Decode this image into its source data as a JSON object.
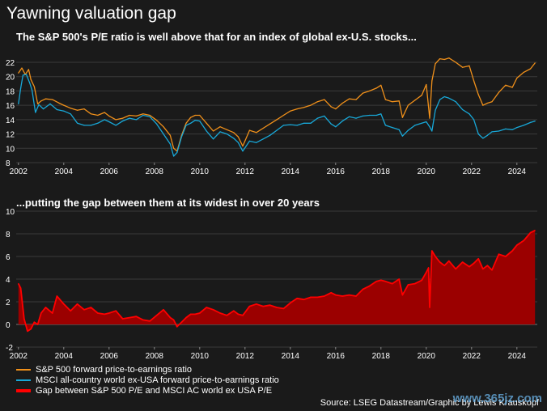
{
  "title": "Yawning valuation gap",
  "colors": {
    "background": "#1a1a1a",
    "sp500": "#f0901a",
    "msci": "#18a8d8",
    "gap_fill": "#9b0000",
    "gap_line": "#ff0000",
    "grid": "#3a3a3a"
  },
  "chart_data": [
    {
      "type": "line",
      "title": "The S&P 500's P/E ratio is well above that for an index of global ex-U.S. stocks...",
      "xlabel": "",
      "ylabel": "",
      "xlim": [
        2001.9,
        2024.9
      ],
      "ylim": [
        8,
        22
      ],
      "yticks": [
        "8",
        "10",
        "12",
        "14",
        "16",
        "18",
        "20",
        "22"
      ],
      "xticks": [
        "2002",
        "2004",
        "2006",
        "2008",
        "2010",
        "2012",
        "2014",
        "2016",
        "2018",
        "2020",
        "2022",
        "2024"
      ],
      "grid": true,
      "series": [
        {
          "name": "S&P 500 forward price-to-earnings ratio",
          "color": "#f0901a",
          "x": [
            2002.0,
            2002.15,
            2002.3,
            2002.45,
            2002.55,
            2002.7,
            2002.85,
            2003.0,
            2003.2,
            2003.5,
            2003.8,
            2004.0,
            2004.3,
            2004.6,
            2004.9,
            2005.2,
            2005.5,
            2005.8,
            2006.0,
            2006.3,
            2006.6,
            2006.9,
            2007.2,
            2007.5,
            2007.8,
            2008.1,
            2008.4,
            2008.7,
            2008.85,
            2009.0,
            2009.2,
            2009.4,
            2009.6,
            2009.8,
            2010.0,
            2010.3,
            2010.6,
            2010.9,
            2011.2,
            2011.5,
            2011.7,
            2011.9,
            2012.2,
            2012.5,
            2012.8,
            2013.1,
            2013.4,
            2013.7,
            2014.0,
            2014.3,
            2014.6,
            2014.9,
            2015.2,
            2015.5,
            2015.8,
            2016.0,
            2016.3,
            2016.6,
            2016.9,
            2017.2,
            2017.5,
            2017.8,
            2018.0,
            2018.2,
            2018.5,
            2018.8,
            2018.95,
            2019.2,
            2019.5,
            2019.8,
            2020.0,
            2020.15,
            2020.25,
            2020.4,
            2020.6,
            2020.8,
            2021.0,
            2021.3,
            2021.6,
            2021.9,
            2022.1,
            2022.3,
            2022.5,
            2022.7,
            2022.9,
            2023.2,
            2023.5,
            2023.8,
            2024.0,
            2024.3,
            2024.6,
            2024.8
          ],
          "values": [
            20.5,
            21.2,
            20.3,
            21.0,
            19.6,
            18.6,
            16.2,
            16.6,
            16.9,
            16.8,
            16.3,
            16.0,
            15.6,
            15.3,
            15.5,
            14.8,
            14.6,
            15.0,
            14.5,
            14.0,
            14.2,
            14.6,
            14.5,
            14.8,
            14.6,
            13.9,
            13.0,
            11.8,
            10.0,
            9.6,
            11.8,
            13.5,
            14.3,
            14.6,
            14.6,
            13.5,
            12.4,
            13.0,
            12.6,
            12.2,
            11.6,
            10.3,
            12.5,
            12.2,
            12.8,
            13.4,
            14.0,
            14.6,
            15.2,
            15.5,
            15.7,
            16.0,
            16.5,
            16.8,
            15.8,
            15.5,
            16.3,
            16.9,
            16.8,
            17.7,
            18.0,
            18.4,
            18.8,
            16.8,
            16.5,
            16.6,
            14.3,
            16.0,
            16.7,
            17.4,
            18.9,
            14.2,
            19.4,
            21.8,
            22.5,
            22.4,
            22.6,
            22.0,
            21.3,
            21.5,
            19.4,
            17.5,
            16.0,
            16.3,
            16.5,
            17.8,
            18.8,
            18.5,
            19.8,
            20.6,
            21.1,
            21.9
          ]
        },
        {
          "name": "MSCI all-country world ex-USA forward price-to-earnings ratio",
          "color": "#18a8d8",
          "x": [
            2002.0,
            2002.1,
            2002.2,
            2002.35,
            2002.5,
            2002.6,
            2002.75,
            2002.9,
            2003.1,
            2003.4,
            2003.7,
            2004.0,
            2004.3,
            2004.6,
            2004.9,
            2005.2,
            2005.5,
            2005.8,
            2006.0,
            2006.3,
            2006.6,
            2006.9,
            2007.2,
            2007.5,
            2007.8,
            2008.1,
            2008.4,
            2008.7,
            2008.85,
            2009.0,
            2009.2,
            2009.4,
            2009.6,
            2009.8,
            2010.0,
            2010.3,
            2010.6,
            2010.9,
            2011.2,
            2011.5,
            2011.7,
            2011.9,
            2012.2,
            2012.5,
            2012.8,
            2013.1,
            2013.4,
            2013.7,
            2014.0,
            2014.3,
            2014.6,
            2014.9,
            2015.2,
            2015.5,
            2015.8,
            2016.0,
            2016.3,
            2016.6,
            2016.9,
            2017.2,
            2017.5,
            2017.8,
            2018.0,
            2018.2,
            2018.5,
            2018.8,
            2018.95,
            2019.2,
            2019.5,
            2019.8,
            2020.0,
            2020.15,
            2020.25,
            2020.4,
            2020.6,
            2020.8,
            2021.0,
            2021.3,
            2021.6,
            2021.9,
            2022.1,
            2022.3,
            2022.5,
            2022.7,
            2022.9,
            2023.2,
            2023.5,
            2023.8,
            2024.0,
            2024.3,
            2024.6,
            2024.8
          ],
          "values": [
            16.2,
            18.4,
            20.2,
            20.3,
            19.1,
            18.1,
            15.0,
            16.1,
            15.5,
            16.2,
            15.4,
            15.2,
            14.8,
            13.5,
            13.2,
            13.2,
            13.5,
            14.0,
            13.7,
            13.2,
            13.8,
            14.2,
            14.0,
            14.6,
            14.4,
            13.4,
            12.0,
            10.6,
            8.9,
            9.4,
            11.6,
            13.2,
            13.5,
            13.9,
            13.8,
            12.4,
            11.3,
            12.3,
            12.0,
            11.4,
            10.8,
            9.6,
            11.0,
            10.8,
            11.3,
            11.8,
            12.5,
            13.2,
            13.3,
            13.2,
            13.5,
            13.5,
            14.2,
            14.5,
            13.4,
            13.0,
            13.8,
            14.4,
            14.2,
            14.5,
            14.6,
            14.6,
            14.8,
            13.2,
            12.9,
            12.6,
            11.7,
            12.5,
            13.2,
            13.5,
            13.7,
            13.0,
            12.4,
            15.3,
            16.8,
            17.2,
            17.0,
            16.5,
            15.4,
            14.8,
            14.0,
            12.0,
            11.4,
            11.8,
            12.3,
            12.4,
            12.7,
            12.6,
            12.9,
            13.2,
            13.6,
            13.8
          ]
        }
      ]
    },
    {
      "type": "area",
      "title": "...putting the gap between them at its widest in over 20 years",
      "xlabel": "",
      "ylabel": "",
      "xlim": [
        2001.9,
        2024.9
      ],
      "ylim": [
        -2,
        10
      ],
      "yticks": [
        "-2",
        "0",
        "2",
        "4",
        "6",
        "8",
        "10"
      ],
      "xticks": [
        "2002",
        "2004",
        "2006",
        "2008",
        "2010",
        "2012",
        "2014",
        "2016",
        "2018",
        "2020",
        "2022",
        "2024"
      ],
      "grid": true,
      "series": [
        {
          "name": "Gap between S&P 500 P/E and MSCI AC world ex USA P/E",
          "color": "#ff0000",
          "x": [
            2002.0,
            2002.1,
            2002.25,
            2002.4,
            2002.55,
            2002.7,
            2002.85,
            2003.0,
            2003.2,
            2003.5,
            2003.7,
            2004.0,
            2004.3,
            2004.6,
            2004.9,
            2005.2,
            2005.5,
            2005.8,
            2006.0,
            2006.3,
            2006.6,
            2006.9,
            2007.2,
            2007.5,
            2007.8,
            2008.1,
            2008.4,
            2008.7,
            2008.85,
            2009.0,
            2009.2,
            2009.4,
            2009.6,
            2009.8,
            2010.0,
            2010.3,
            2010.6,
            2010.9,
            2011.2,
            2011.5,
            2011.7,
            2011.9,
            2012.2,
            2012.5,
            2012.8,
            2013.1,
            2013.4,
            2013.7,
            2014.0,
            2014.3,
            2014.6,
            2014.9,
            2015.2,
            2015.5,
            2015.8,
            2016.0,
            2016.3,
            2016.6,
            2016.9,
            2017.2,
            2017.5,
            2017.8,
            2018.0,
            2018.2,
            2018.5,
            2018.8,
            2018.95,
            2019.2,
            2019.5,
            2019.8,
            2020.0,
            2020.1,
            2020.15,
            2020.25,
            2020.4,
            2020.6,
            2020.8,
            2021.0,
            2021.3,
            2021.6,
            2021.9,
            2022.1,
            2022.3,
            2022.5,
            2022.7,
            2022.9,
            2023.2,
            2023.5,
            2023.8,
            2024.0,
            2024.3,
            2024.6,
            2024.8
          ],
          "values": [
            3.6,
            3.2,
            0.5,
            -0.6,
            -0.4,
            0.2,
            0.0,
            1.0,
            1.5,
            1.0,
            2.5,
            1.8,
            1.2,
            1.8,
            1.3,
            1.5,
            1.0,
            0.9,
            1.0,
            1.2,
            0.5,
            0.6,
            0.7,
            0.4,
            0.3,
            0.8,
            1.3,
            0.6,
            0.4,
            -0.2,
            0.2,
            0.6,
            0.9,
            0.9,
            1.0,
            1.5,
            1.3,
            1.0,
            0.8,
            1.2,
            0.9,
            0.8,
            1.6,
            1.8,
            1.6,
            1.7,
            1.5,
            1.4,
            1.9,
            2.3,
            2.2,
            2.4,
            2.4,
            2.5,
            2.8,
            2.6,
            2.5,
            2.6,
            2.5,
            3.1,
            3.4,
            3.8,
            3.9,
            3.8,
            3.6,
            4.0,
            2.6,
            3.5,
            3.6,
            3.9,
            4.6,
            5.0,
            1.5,
            6.5,
            6.0,
            5.5,
            5.2,
            5.6,
            4.9,
            5.5,
            5.1,
            5.4,
            5.8,
            4.9,
            5.2,
            4.8,
            6.2,
            6.0,
            6.5,
            7.0,
            7.4,
            8.1,
            8.3
          ]
        }
      ]
    }
  ],
  "legend": {
    "sp500": "S&P 500 forward price-to-earnings ratio",
    "msci": "MSCI all-country world ex-USA forward price-to-earnings ratio",
    "gap": "Gap between S&P 500 P/E and MSCI AC world ex USA P/E"
  },
  "source": "Source: LSEG Datastream/Graphic by Lewis Krauskopf",
  "watermark": "www.365jz.com"
}
